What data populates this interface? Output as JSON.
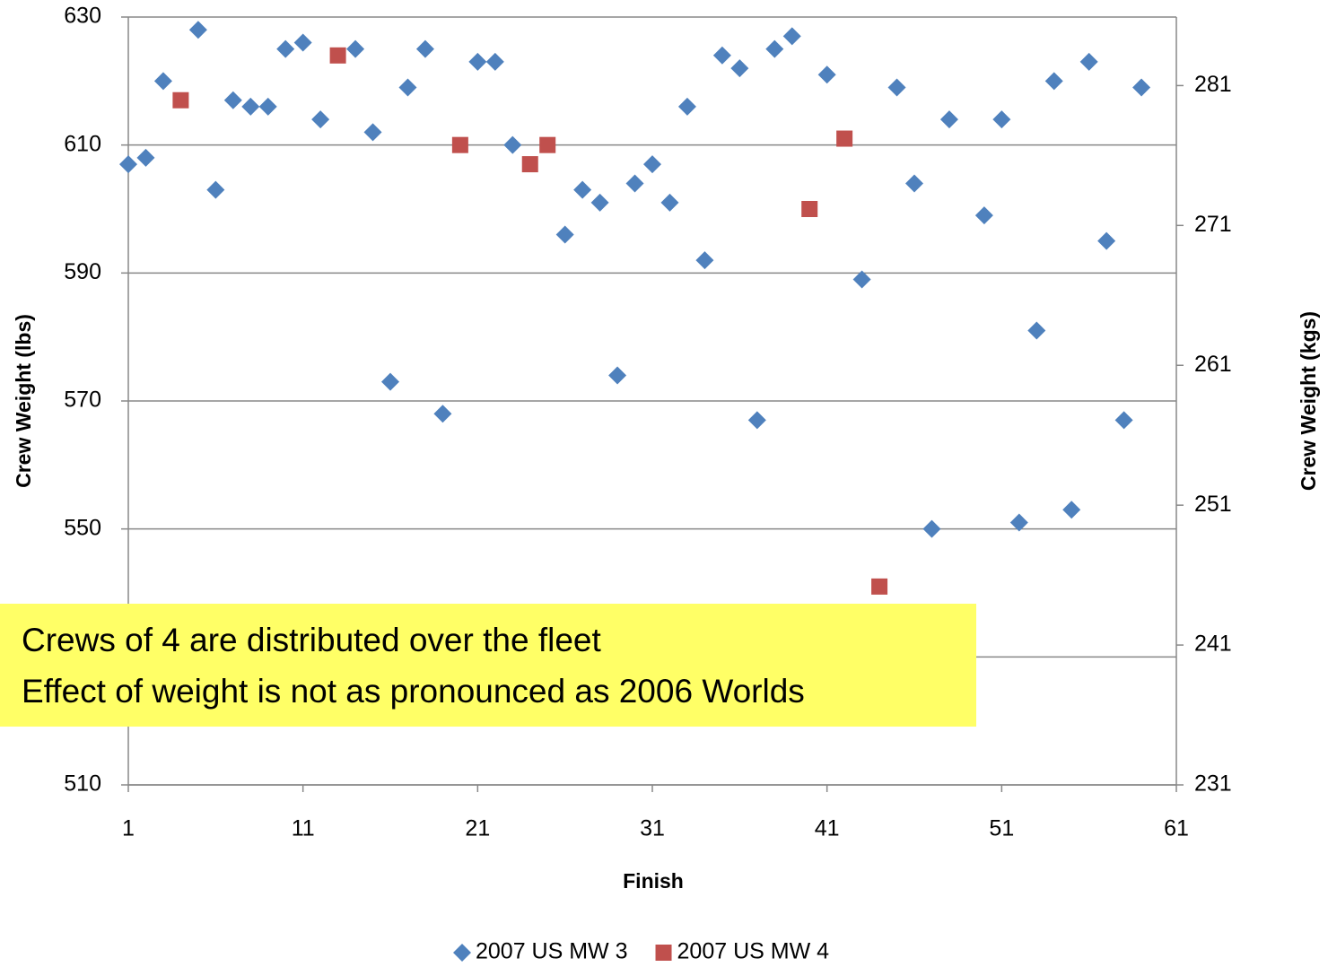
{
  "chart_data": {
    "type": "scatter",
    "xlabel": "Finish",
    "ylabel": "Crew Weight (lbs)",
    "y2label": "Crew Weight (kgs)",
    "xlim": [
      1,
      61
    ],
    "xticks": [
      1,
      11,
      21,
      31,
      41,
      51,
      61
    ],
    "ylim": [
      510,
      630
    ],
    "yticks": [
      510,
      530,
      550,
      570,
      590,
      610,
      630
    ],
    "y2lim": [
      231,
      285.9
    ],
    "y2ticks": [
      231,
      241,
      251,
      261,
      271,
      281
    ],
    "grid": true,
    "legend": "bottom",
    "annotations": [
      "Crews of 4 are distributed over the fleet",
      "Effect of weight is not as pronounced as 2006 Worlds"
    ],
    "series": [
      {
        "name": "2007 US MW 3",
        "color": "#4f81bd",
        "marker": "diamond",
        "x": [
          1,
          2,
          3,
          5,
          6,
          7,
          8,
          9,
          10,
          11,
          12,
          14,
          15,
          16,
          17,
          18,
          19,
          21,
          22,
          23,
          26,
          27,
          28,
          29,
          30,
          31,
          32,
          33,
          34,
          35,
          36,
          37,
          38,
          39,
          41,
          43,
          45,
          46,
          47,
          48,
          50,
          51,
          52,
          53,
          54,
          55,
          56,
          57,
          58,
          59
        ],
        "values": [
          607,
          608,
          620,
          628,
          603,
          617,
          616,
          616,
          625,
          626,
          614,
          625,
          612,
          573,
          619,
          625,
          568,
          623,
          623,
          610,
          596,
          603,
          601,
          574,
          604,
          607,
          601,
          616,
          592,
          624,
          622,
          567,
          625,
          627,
          621,
          589,
          619,
          604,
          550,
          614,
          599,
          614,
          551,
          581,
          620,
          553,
          623,
          595,
          567,
          619
        ]
      },
      {
        "name": "2007 US MW 4",
        "color": "#c0504d",
        "marker": "square",
        "x": [
          4,
          13,
          20,
          24,
          25,
          40,
          42,
          44
        ],
        "values": [
          617,
          624,
          610,
          607,
          610,
          600,
          611,
          541
        ]
      }
    ]
  }
}
